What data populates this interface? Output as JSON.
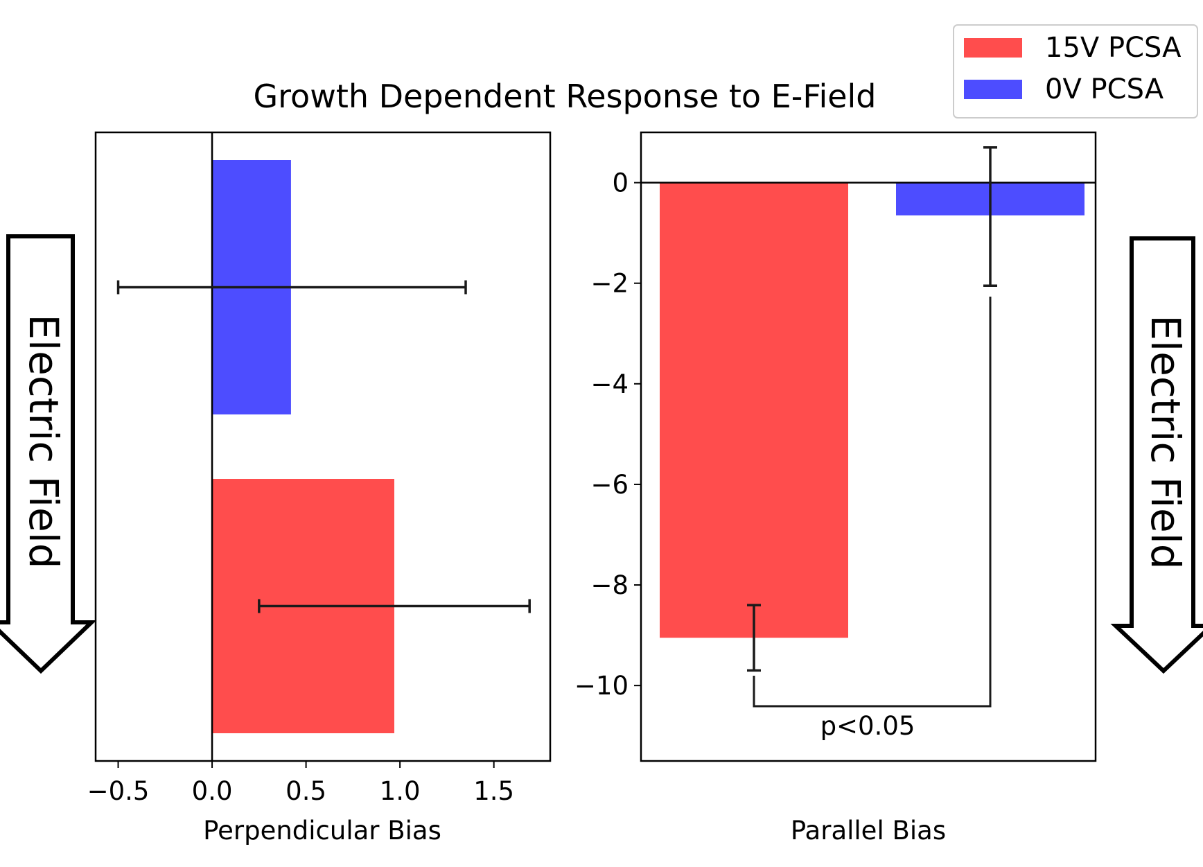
{
  "title": "Growth Dependent Response to E-Field",
  "colors": {
    "15V": "#ff4d4d",
    "0V": "#4d4dff",
    "errorbar": "#1a1a1a",
    "axis": "#000000"
  },
  "legend": {
    "placement": "top-right",
    "entries": [
      {
        "label": "15V PCSA",
        "color": "#ff4d4d"
      },
      {
        "label": "0V PCSA",
        "color": "#4d4dff"
      }
    ]
  },
  "annotations": {
    "significance": "p<0.05",
    "left_arrow": "Electric Field",
    "right_arrow": "Electric Field"
  },
  "chart_data": [
    {
      "type": "bar",
      "orientation": "horizontal",
      "xlabel": "Perpendicular Bias",
      "xlim": [
        -0.62,
        1.8
      ],
      "xticks": [
        -0.5,
        0.0,
        0.5,
        1.0,
        1.5
      ],
      "xtick_labels": [
        "−0.5",
        "0.0",
        "0.5",
        "1.0",
        "1.5"
      ],
      "reference_line": "x = 0",
      "series": [
        {
          "name": "15V PCSA",
          "value": 0.97,
          "error_low": 0.25,
          "error_high": 1.69
        },
        {
          "name": "0V PCSA",
          "value": 0.42,
          "error_low": -0.5,
          "error_high": 1.35
        }
      ]
    },
    {
      "type": "bar",
      "orientation": "vertical",
      "xlabel": "Parallel Bias",
      "ylim": [
        -11.5,
        1.0
      ],
      "yticks": [
        0,
        -2,
        -4,
        -6,
        -8,
        -10
      ],
      "ytick_labels": [
        "0",
        "−2",
        "−4",
        "−6",
        "−8",
        "−10"
      ],
      "reference_line": "y = 0",
      "series": [
        {
          "name": "15V PCSA",
          "value": -9.05,
          "error_low": -9.7,
          "error_high": -8.4
        },
        {
          "name": "0V PCSA",
          "value": -0.65,
          "error_low": -2.05,
          "error_high": 0.7
        }
      ]
    }
  ]
}
